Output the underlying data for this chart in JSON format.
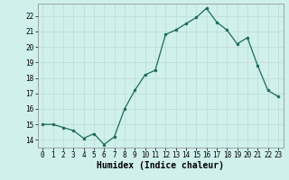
{
  "x": [
    0,
    1,
    2,
    3,
    4,
    5,
    6,
    7,
    8,
    9,
    10,
    11,
    12,
    13,
    14,
    15,
    16,
    17,
    18,
    19,
    20,
    21,
    22,
    23
  ],
  "y": [
    15.0,
    15.0,
    14.8,
    14.6,
    14.1,
    14.4,
    13.7,
    14.2,
    16.0,
    17.2,
    18.2,
    18.5,
    20.8,
    21.1,
    21.5,
    21.9,
    22.5,
    21.6,
    21.1,
    20.2,
    20.6,
    18.8,
    17.2,
    16.8
  ],
  "line_color": "#1a6b5a",
  "marker": "o",
  "marker_size": 2.0,
  "bg_color": "#cff0ec",
  "grid_color": "#c0ddd8",
  "xlabel": "Humidex (Indice chaleur)",
  "xlim": [
    -0.5,
    23.5
  ],
  "ylim": [
    13.5,
    22.8
  ],
  "yticks": [
    14,
    15,
    16,
    17,
    18,
    19,
    20,
    21,
    22
  ],
  "xticks": [
    0,
    1,
    2,
    3,
    4,
    5,
    6,
    7,
    8,
    9,
    10,
    11,
    12,
    13,
    14,
    15,
    16,
    17,
    18,
    19,
    20,
    21,
    22,
    23
  ],
  "tick_label_fontsize": 5.5,
  "xlabel_fontsize": 7.0,
  "linewidth": 0.9
}
